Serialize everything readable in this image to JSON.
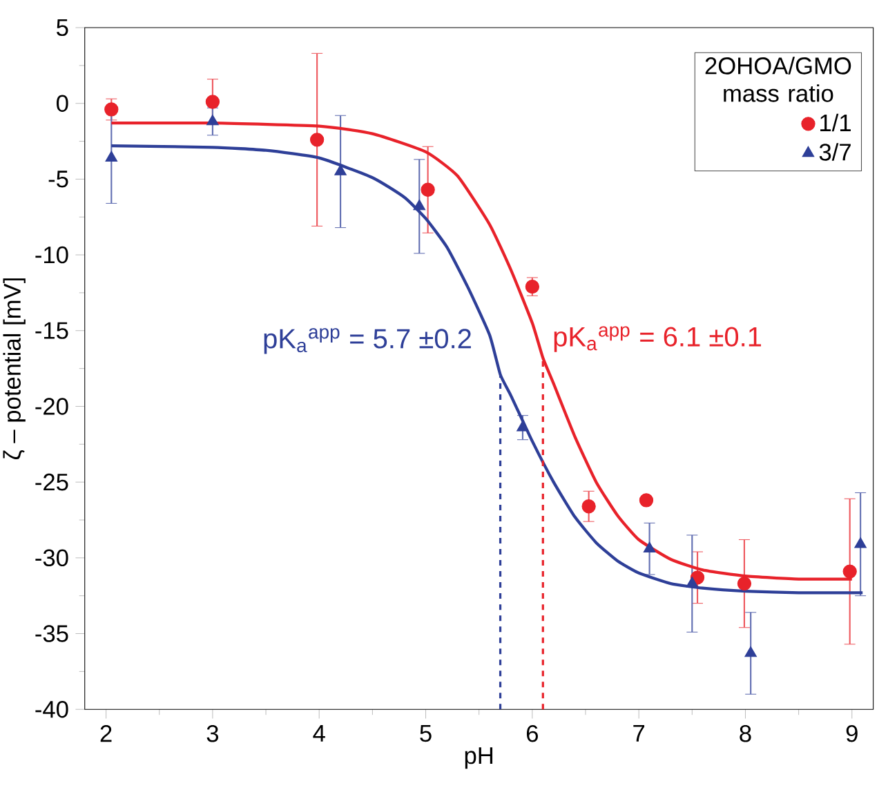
{
  "chart_data": {
    "type": "scatter",
    "xlabel": "pH",
    "ylabel": "ζ – potential [mV]",
    "legend_title": "2OHOA/GMO mass ratio",
    "legend": "top right",
    "xlim": [
      1.8,
      9.2
    ],
    "ylim": [
      -40,
      5
    ],
    "xticks": [
      2,
      3,
      4,
      5,
      6,
      7,
      8,
      9
    ],
    "yticks": [
      -40,
      -35,
      -30,
      -25,
      -20,
      -15,
      -10,
      -5,
      0,
      5
    ],
    "series": [
      {
        "name": "1/1",
        "color": "#e8222a",
        "marker": "circle",
        "x": [
          2.05,
          3.0,
          3.98,
          5.02,
          6.0,
          6.53,
          7.07,
          7.55,
          7.99,
          8.98
        ],
        "values": [
          -0.4,
          0.1,
          -2.4,
          -5.7,
          -12.1,
          -26.6,
          -26.2,
          -31.3,
          -31.7,
          -30.9
        ],
        "errors": [
          0.7,
          1.5,
          5.7,
          2.85,
          0.6,
          1.0,
          null,
          1.7,
          2.9,
          4.8
        ]
      },
      {
        "name": "3/7",
        "color": "#2e3f98",
        "marker": "triangle",
        "x": [
          2.05,
          3.0,
          4.2,
          4.94,
          5.91,
          7.1,
          7.5,
          8.05,
          9.08
        ],
        "values": [
          -3.6,
          -1.2,
          -4.5,
          -6.8,
          -21.4,
          -29.4,
          -31.7,
          -36.3,
          -29.1
        ],
        "errors": [
          3.0,
          0.9,
          3.7,
          3.1,
          0.8,
          1.7,
          3.2,
          2.7,
          3.4
        ]
      },
      {
        "type": "line",
        "color": "#e8222a",
        "marker": "none",
        "x": [
          2.05,
          3,
          4,
          4.5,
          5.0,
          5.3,
          5.6,
          5.8,
          6.0,
          6.1,
          6.2,
          6.4,
          6.6,
          6.8,
          7.0,
          7.3,
          7.6,
          8,
          8.5,
          9.0
        ],
        "values": [
          -1.3,
          -1.3,
          -1.5,
          -2.0,
          -3.2,
          -4.8,
          -8.0,
          -11,
          -14.5,
          -16.8,
          -18.5,
          -22,
          -25,
          -27.2,
          -28.8,
          -30.1,
          -30.8,
          -31.2,
          -31.4,
          -31.4
        ]
      },
      {
        "type": "line",
        "color": "#2e3f98",
        "marker": "none",
        "x": [
          2.05,
          3,
          3.5,
          4,
          4.5,
          4.8,
          5.0,
          5.2,
          5.4,
          5.6,
          5.7,
          5.8,
          6.0,
          6.2,
          6.4,
          6.6,
          6.8,
          7.0,
          7.3,
          7.6,
          8.0,
          8.5,
          9.1
        ],
        "values": [
          -2.8,
          -2.9,
          -3.1,
          -3.6,
          -4.9,
          -6.2,
          -7.6,
          -9.5,
          -12.2,
          -15.3,
          -17.9,
          -19.3,
          -22.3,
          -25.0,
          -27.3,
          -29.0,
          -30.2,
          -31.0,
          -31.7,
          -32.0,
          -32.2,
          -32.3,
          -32.3
        ]
      }
    ],
    "ref_lines": [
      {
        "axis": "x",
        "value": 6.1,
        "label": "pK$_{a}$$^{app}$ = 6.1 ±0.1",
        "color": "#e8222a",
        "line_style": "dashed"
      },
      {
        "axis": "x",
        "value": 5.7,
        "label": "pK$_{a}$$^{app}$ = 5.7 ±0.2",
        "color": "#2e3f98",
        "line_style": "dashed"
      }
    ]
  }
}
